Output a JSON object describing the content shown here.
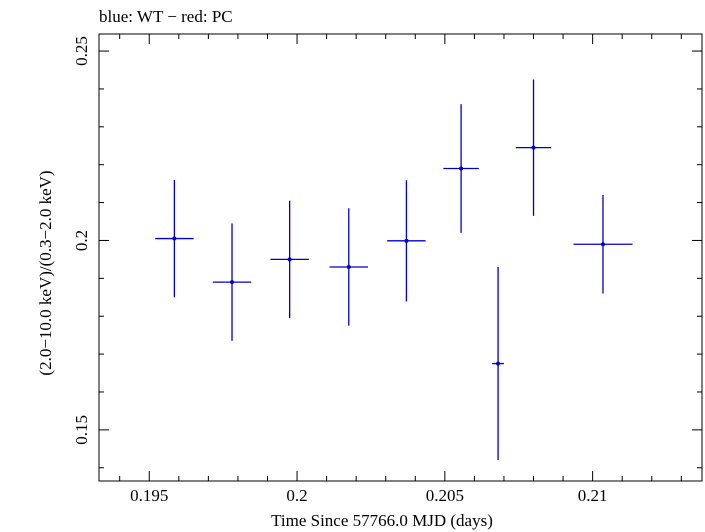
{
  "chart_data": {
    "type": "scatter",
    "title": "blue: WT − red: PC",
    "xlabel": "Time Since 57766.0 MJD (days)",
    "ylabel": "(2.0−10.0 keV)/(0.3−2.0 keV)",
    "xlim": [
      0.1933,
      0.2137
    ],
    "ylim": [
      0.1365,
      0.2545
    ],
    "x_ticks": [
      0.195,
      0.2,
      0.205,
      0.21
    ],
    "x_tick_labels": [
      "0.195",
      "0.2",
      "0.205",
      "0.21"
    ],
    "y_ticks": [
      0.15,
      0.2,
      0.25
    ],
    "y_tick_labels": [
      "0.15",
      "0.2",
      "0.25"
    ],
    "grid": false,
    "series": [
      {
        "color": "#0000cc",
        "points": [
          {
            "x": 0.19585,
            "y": 0.2005,
            "xerr": 0.00065,
            "yerr": 0.0155
          },
          {
            "x": 0.1978,
            "y": 0.189,
            "xerr": 0.00065,
            "yerr": 0.0155
          },
          {
            "x": 0.19975,
            "y": 0.195,
            "xerr": 0.00065,
            "yerr": 0.0155
          },
          {
            "x": 0.20175,
            "y": 0.193,
            "xerr": 0.00065,
            "yerr": 0.0155
          },
          {
            "x": 0.2037,
            "y": 0.1999,
            "xerr": 0.00065,
            "yerr": 0.016
          },
          {
            "x": 0.20555,
            "y": 0.219,
            "xerr": 0.0006,
            "yerr": 0.017
          },
          {
            "x": 0.2068,
            "y": 0.1675,
            "xerr": 0.0002,
            "yerr": 0.0255
          },
          {
            "x": 0.208,
            "y": 0.2245,
            "xerr": 0.0006,
            "yerr": 0.018
          },
          {
            "x": 0.21035,
            "y": 0.199,
            "xerr": 0.001,
            "yerr": 0.013
          }
        ]
      }
    ]
  }
}
